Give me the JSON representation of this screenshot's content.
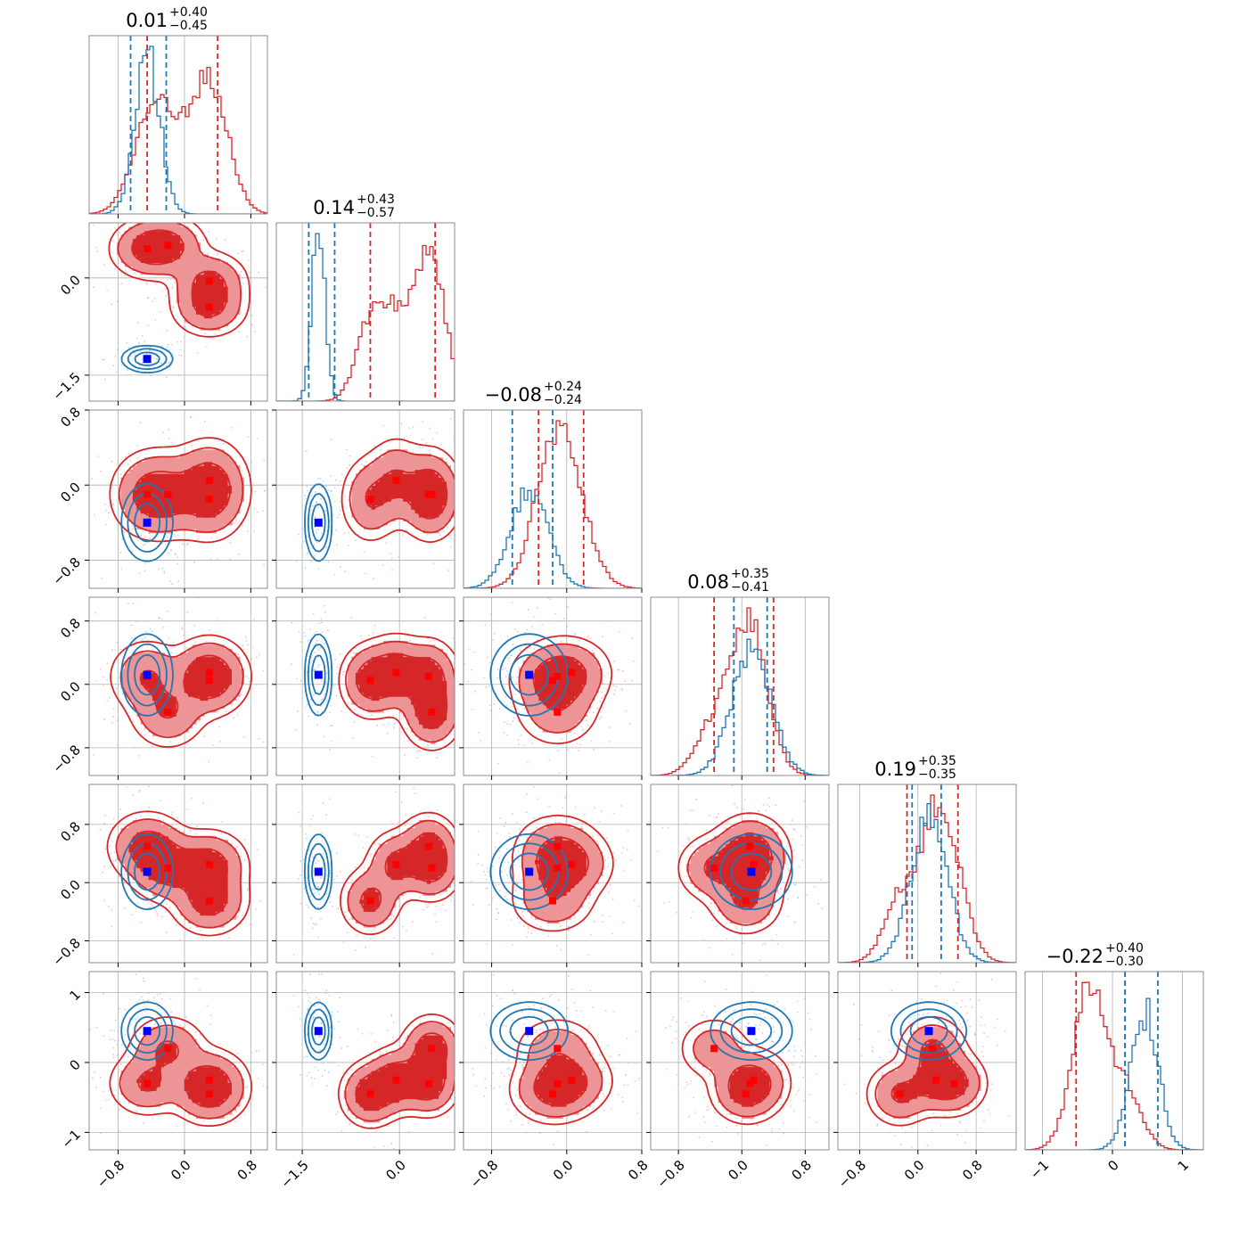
{
  "chart_data": {
    "type": "corner",
    "dimensions": 6,
    "series_colors": {
      "red": "#d62728",
      "red_light": "#ec9496",
      "blue": "#1f77b4"
    },
    "marker_colors": {
      "red": "#ff0000",
      "blue": "#0000ff"
    },
    "grid": true,
    "titles": [
      {
        "median": "0.01",
        "upper": "+0.40",
        "lower": "−0.45"
      },
      {
        "median": "0.14",
        "upper": "+0.43",
        "lower": "−0.57"
      },
      {
        "median": "−0.08",
        "upper": "+0.24",
        "lower": "−0.24"
      },
      {
        "median": "0.08",
        "upper": "+0.35",
        "lower": "−0.41"
      },
      {
        "median": "0.19",
        "upper": "+0.35",
        "lower": "−0.35"
      },
      {
        "median": "−0.22",
        "upper": "+0.40",
        "lower": "−0.30"
      }
    ],
    "axes": [
      {
        "range": [
          -1.15,
          1.0
        ],
        "ticks": [
          -0.8,
          0.0,
          0.8
        ],
        "tick_labels": [
          "−0.8",
          "0.0",
          "0.8"
        ]
      },
      {
        "range": [
          -1.9,
          0.85
        ],
        "ticks": [
          -1.5,
          0.0
        ],
        "tick_labels": [
          "−1.5",
          "0.0"
        ]
      },
      {
        "range": [
          -1.1,
          0.8
        ],
        "ticks": [
          -0.8,
          0.0,
          0.8
        ],
        "tick_labels": [
          "−0.8",
          "0.0",
          "0.8"
        ]
      },
      {
        "range": [
          -1.15,
          1.1
        ],
        "ticks": [
          -0.8,
          0.0,
          0.8
        ],
        "tick_labels": [
          "−0.8",
          "0.0",
          "0.8"
        ]
      },
      {
        "range": [
          -1.1,
          1.35
        ],
        "ticks": [
          -0.8,
          0.0,
          0.8
        ],
        "tick_labels": [
          "−0.8",
          "0.0",
          "0.8"
        ]
      },
      {
        "range": [
          -1.25,
          1.3
        ],
        "ticks": [
          -1,
          0,
          1
        ],
        "tick_labels": [
          "−1",
          "0",
          "1"
        ]
      }
    ],
    "red_modes": [
      [
        -0.45,
        0.45,
        -0.1,
        0.1,
        0.5,
        -0.3
      ],
      [
        -0.2,
        0.5,
        -0.1,
        -0.35,
        0.2,
        0.2
      ],
      [
        0.3,
        -0.05,
        0.05,
        0.15,
        0.25,
        -0.25
      ],
      [
        0.3,
        -0.45,
        -0.15,
        0.05,
        -0.25,
        -0.45
      ]
    ],
    "blue_mode": [
      -0.45,
      -1.25,
      -0.4,
      0.12,
      0.15,
      0.45
    ],
    "blue_spread": [
      0.15,
      0.1,
      0.2,
      0.25,
      0.25,
      0.2
    ],
    "red_quantiles": [
      [
        -0.45,
        0.4
      ],
      [
        -0.45,
        0.55
      ],
      [
        -0.3,
        0.18
      ],
      [
        -0.35,
        0.4
      ],
      [
        -0.15,
        0.55
      ],
      [
        -0.52,
        0.18
      ]
    ],
    "blue_quantiles": [
      [
        -0.65,
        -0.22
      ],
      [
        -1.4,
        -1.0
      ],
      [
        -0.58,
        -0.15
      ],
      [
        -0.1,
        0.32
      ],
      [
        -0.08,
        0.32
      ],
      [
        0.18,
        0.65
      ]
    ]
  }
}
